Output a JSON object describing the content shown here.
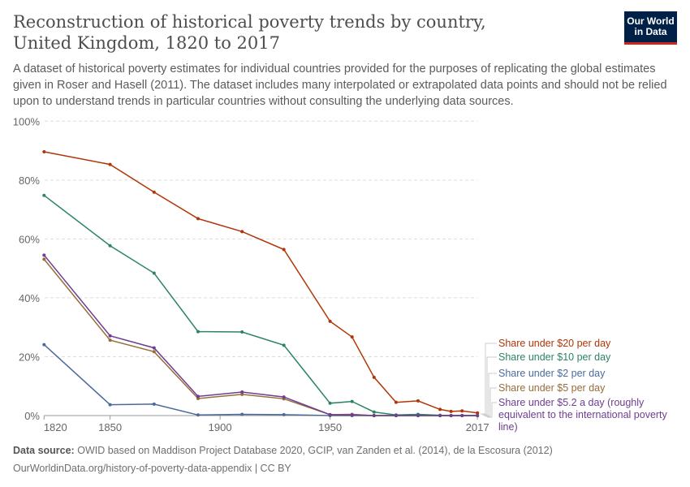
{
  "header": {
    "title": "Reconstruction of historical poverty trends by country, United Kingdom, 1820 to 2017",
    "subtitle": "A dataset of historical poverty estimates for individual countries provided for the purposes of replicating the global estimates given in Roser and Hasell (2011). The dataset includes many interpolated or extrapolated data points and should not be relied upon to understand trends in particular countries without consulting the underlying data sources.",
    "logo": [
      "Our World",
      "in Data"
    ]
  },
  "footer": {
    "source_label": "Data source:",
    "source": "OWID based on Maddison Project Database 2020, GCIP, van Zanden et al. (2014), de la Escosura (2012)",
    "url": "OurWorldinData.org/history-of-poverty-data-appendix | CC BY"
  },
  "chart_data": {
    "type": "line",
    "ylim": [
      0,
      100
    ],
    "xlim": [
      1820,
      2017
    ],
    "y_ticks": [
      "0%",
      "20%",
      "40%",
      "60%",
      "80%",
      "100%"
    ],
    "x_ticks": [
      "1820",
      "1850",
      "1900",
      "1950",
      "2017"
    ],
    "grid": "horizontal dashed",
    "legend": "right",
    "x": [
      1820,
      1850,
      1870,
      1890,
      1910,
      1929,
      1950,
      1960,
      1970,
      1980,
      1990,
      2000,
      2005,
      2010,
      2017
    ],
    "series": [
      {
        "name": "Share under $20 per day",
        "color": "#b13507",
        "values": [
          89.6,
          85.3,
          75.9,
          66.9,
          62.5,
          56.4,
          32.0,
          26.7,
          13.0,
          4.5,
          5.0,
          2.1,
          1.4,
          1.6,
          0.9
        ]
      },
      {
        "name": "Share under $10 per day",
        "color": "#2c8465",
        "values": [
          74.8,
          57.7,
          48.4,
          28.5,
          28.4,
          23.9,
          4.2,
          4.8,
          1.2,
          0.2,
          0.4,
          0.1,
          0,
          0,
          0
        ]
      },
      {
        "name": "Share under $2 per day",
        "color": "#4c6a9c",
        "values": [
          24.1,
          3.7,
          3.9,
          0.2,
          0.4,
          0.3,
          0,
          0,
          0,
          0,
          0,
          0,
          0,
          0,
          0
        ]
      },
      {
        "name": "Share under $5 per day",
        "color": "#986d39",
        "values": [
          53.1,
          25.6,
          21.7,
          5.8,
          7.2,
          5.7,
          0.3,
          0.4,
          0,
          0,
          0,
          0,
          0,
          0,
          0
        ]
      },
      {
        "name": "Share under $5.2 a day (roughly equivalent to the international poverty line)",
        "color": "#6d3e91",
        "values": [
          54.5,
          27.1,
          23.0,
          6.5,
          8.0,
          6.3,
          0.3,
          0.2,
          0,
          0,
          0,
          0,
          0,
          0,
          0
        ]
      }
    ]
  }
}
